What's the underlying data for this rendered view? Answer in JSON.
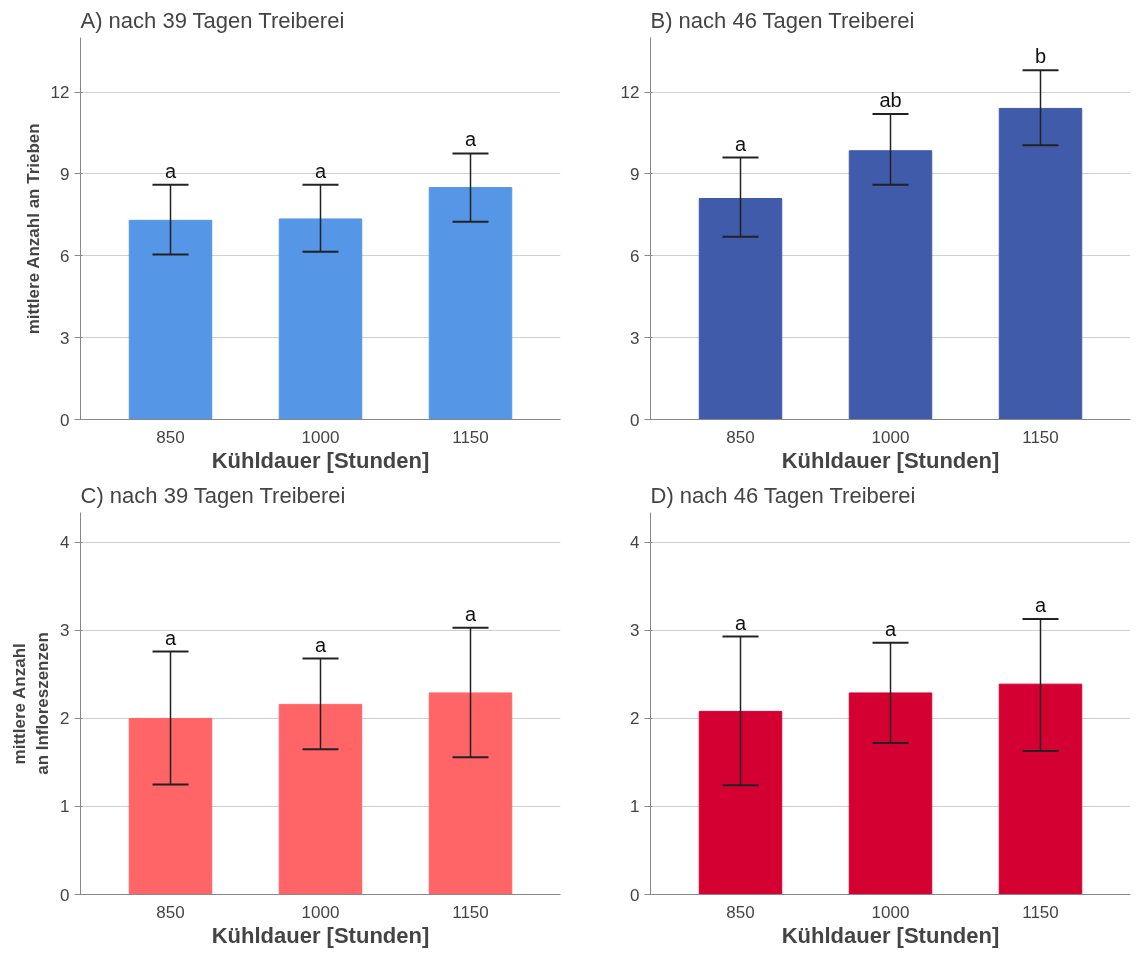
{
  "chart_data": [
    {
      "type": "bar",
      "title": "A) nach 39 Tagen Treiberei",
      "xlabel": "Kühldauer [Stunden]",
      "ylabel": "mittlere Anzahl an Trieben",
      "categories": [
        "850",
        "1000",
        "1150"
      ],
      "values": [
        7.3,
        7.35,
        8.5
      ],
      "errors": [
        [
          6.05,
          8.6
        ],
        [
          6.15,
          8.6
        ],
        [
          7.25,
          9.75
        ]
      ],
      "color": "#5596e6",
      "ylim": [
        0,
        14
      ],
      "yticks": [
        0,
        3,
        6,
        9,
        12
      ],
      "grid": "y",
      "annotations": [
        {
          "text": "a",
          "x": "850",
          "y": 8.6
        },
        {
          "text": "a",
          "x": "1000",
          "y": 8.6
        },
        {
          "text": "a",
          "x": "1150",
          "y": 9.75
        }
      ]
    },
    {
      "type": "bar",
      "title": "B) nach 46 Tagen Treiberei",
      "xlabel": "Kühldauer [Stunden]",
      "categories": [
        "850",
        "1000",
        "1150"
      ],
      "values": [
        8.1,
        9.85,
        11.4
      ],
      "errors": [
        [
          6.7,
          9.6
        ],
        [
          8.6,
          11.2
        ],
        [
          10.05,
          12.8
        ]
      ],
      "color": "#3f5ba9",
      "ylim": [
        0,
        14
      ],
      "yticks": [
        0,
        3,
        6,
        9,
        12
      ],
      "grid": "y",
      "annotations": [
        {
          "text": "a",
          "x": "850",
          "y": 9.6
        },
        {
          "text": "ab",
          "x": "1000",
          "y": 11.2
        },
        {
          "text": "b",
          "x": "1150",
          "y": 12.8
        }
      ]
    },
    {
      "type": "bar",
      "title": "C) nach 39 Tagen Treiberei",
      "xlabel": "Kühldauer [Stunden]",
      "ylabel": "mittlere Anzahl an Infloreszenzen",
      "categories": [
        "850",
        "1000",
        "1150"
      ],
      "values": [
        2.0,
        2.16,
        2.29
      ],
      "errors": [
        [
          1.25,
          2.76
        ],
        [
          1.65,
          2.68
        ],
        [
          1.56,
          3.03
        ]
      ],
      "color": "#ff6466",
      "ylim": [
        0,
        4.34
      ],
      "yticks": [
        0,
        1,
        2,
        3,
        4
      ],
      "grid": "y",
      "annotations": [
        {
          "text": "a",
          "x": "850",
          "y": 2.76
        },
        {
          "text": "a",
          "x": "1000",
          "y": 2.68
        },
        {
          "text": "a",
          "x": "1150",
          "y": 3.03
        }
      ]
    },
    {
      "type": "bar",
      "title": "D) nach 46 Tagen Treiberei",
      "xlabel": "Kühldauer [Stunden]",
      "categories": [
        "850",
        "1000",
        "1150"
      ],
      "values": [
        2.08,
        2.29,
        2.39
      ],
      "errors": [
        [
          1.24,
          2.93
        ],
        [
          1.72,
          2.86
        ],
        [
          1.63,
          3.13
        ]
      ],
      "color": "#d50032",
      "ylim": [
        0,
        4.34
      ],
      "yticks": [
        0,
        1,
        2,
        3,
        4
      ],
      "grid": "y",
      "annotations": [
        {
          "text": "a",
          "x": "850",
          "y": 2.93
        },
        {
          "text": "a",
          "x": "1000",
          "y": 2.86
        },
        {
          "text": "a",
          "x": "1150",
          "y": 3.13
        }
      ]
    }
  ]
}
